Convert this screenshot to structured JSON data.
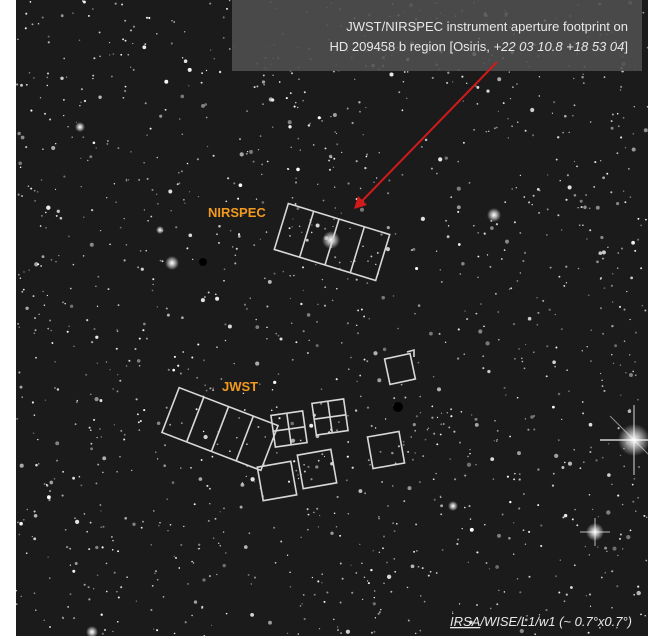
{
  "caption": {
    "line1": "JWST/NIRSPEC instrument aperture footprint on",
    "line2_text": "HD 209458 b region [Osiris, ",
    "line2_coords": "+22 03 10.8 +18 53 04",
    "line2_end": "]"
  },
  "labels": {
    "nirspec": "NIRSPEC",
    "jwst": "JWST"
  },
  "credit": {
    "link": "IRSA",
    "path": "/WISE/L1/w1",
    "extent": " (~ 0.7°x0.7°)"
  }
}
